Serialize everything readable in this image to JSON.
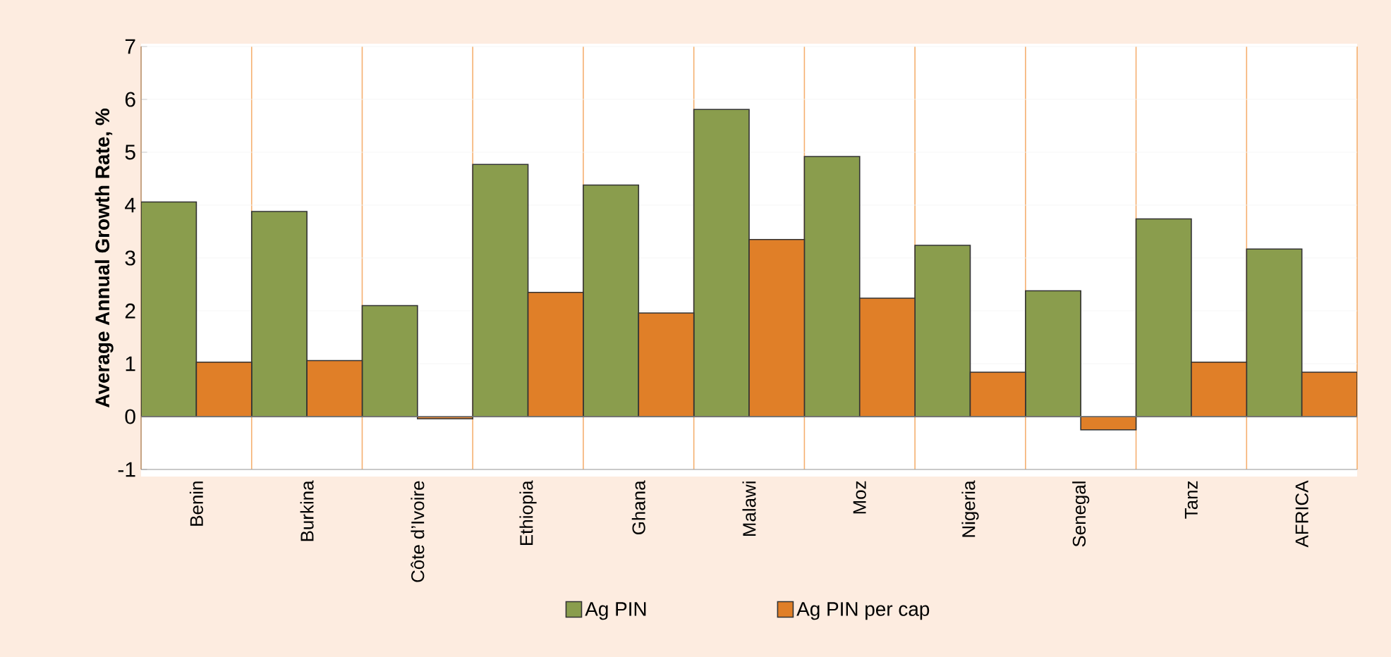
{
  "chart_data": {
    "type": "bar",
    "ylabel": "Average Annual Growth Rate, %",
    "categories": [
      "Benin",
      "Burkina",
      "Côte d’Ivoire",
      "Ethiopia",
      "Ghana",
      "Malawi",
      "Moz",
      "Nigeria",
      "Senegal",
      "Tanz",
      "AFRICA"
    ],
    "series": [
      {
        "name": "Ag PIN",
        "color": "#8a9d4d",
        "values": [
          4.06,
          3.88,
          2.1,
          4.77,
          4.38,
          5.81,
          4.92,
          3.24,
          2.38,
          3.74,
          3.17
        ]
      },
      {
        "name": "Ag PIN per cap",
        "color": "#e07f28",
        "values": [
          1.03,
          1.06,
          -0.04,
          2.35,
          1.96,
          3.35,
          2.24,
          0.84,
          -0.25,
          1.03,
          0.84
        ]
      }
    ],
    "ylim": [
      -1,
      7
    ],
    "yticks": [
      -1,
      0,
      1,
      2,
      3,
      4,
      5,
      6,
      7
    ],
    "grid": true,
    "legend": "bottom"
  }
}
